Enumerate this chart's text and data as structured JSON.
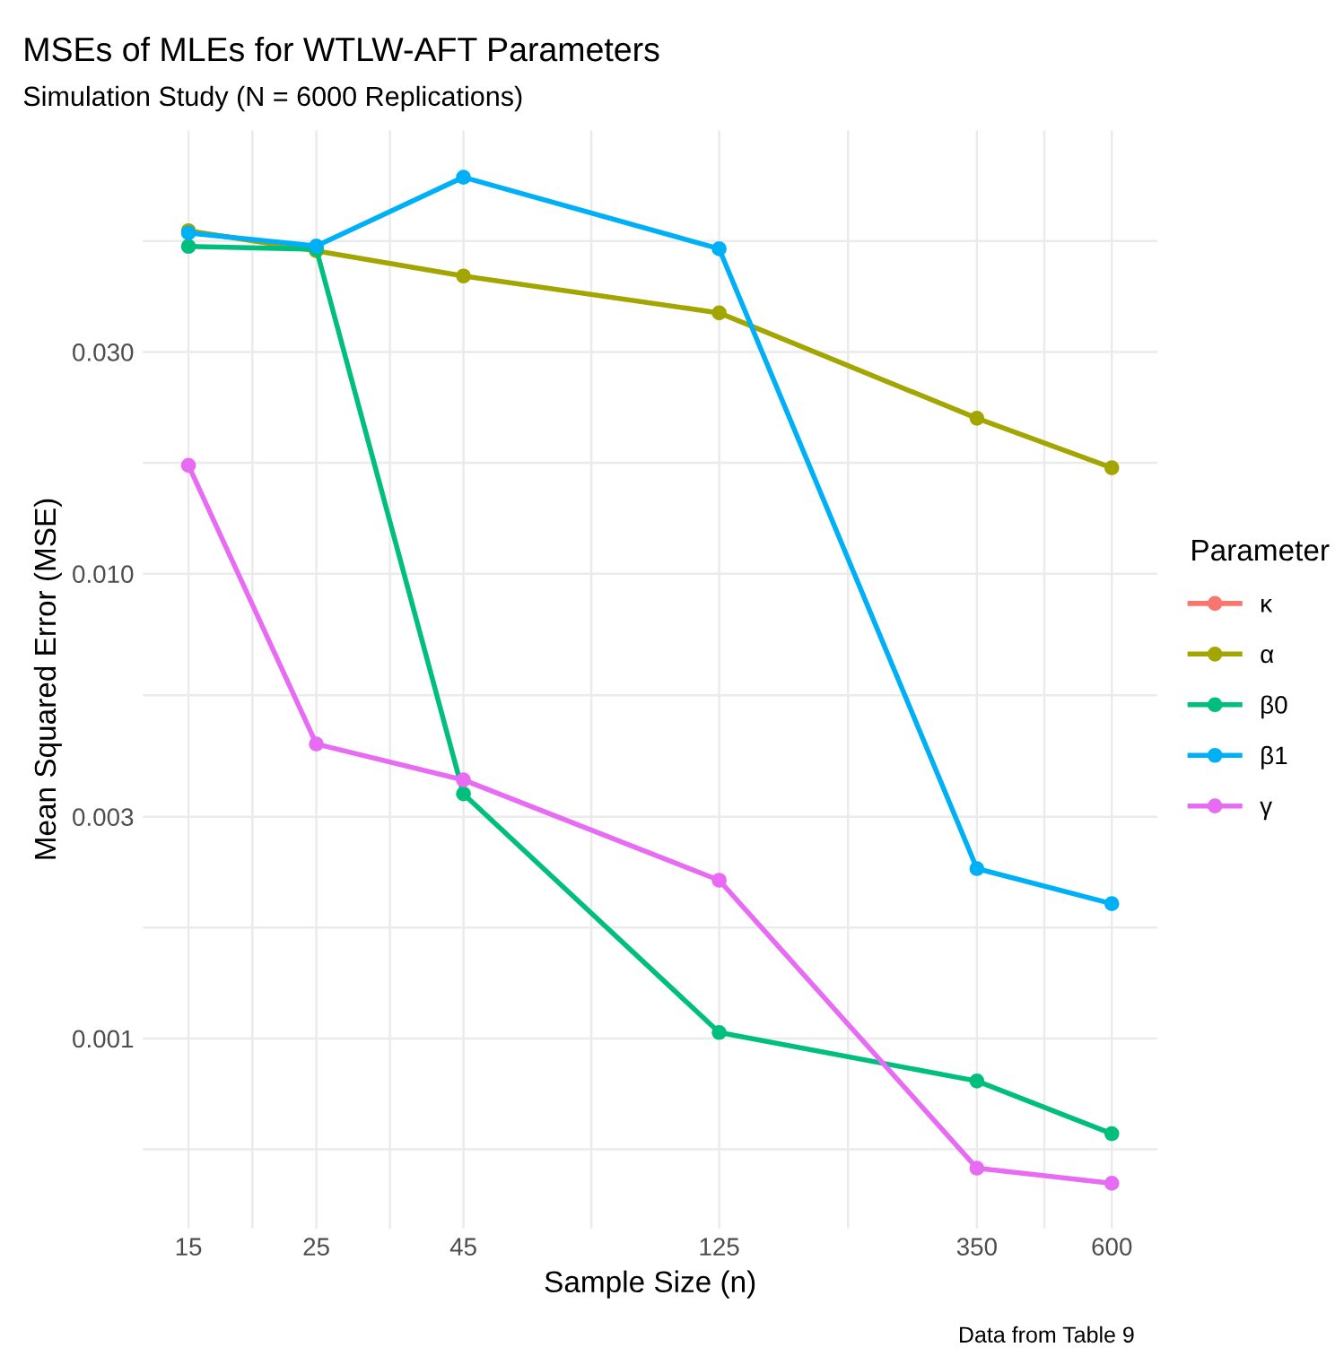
{
  "chart_data": {
    "type": "line",
    "title": "MSEs of MLEs for WTLW-AFT Parameters",
    "subtitle": "Simulation Study (N = 6000 Replications)",
    "xlabel": "Sample Size (n)",
    "ylabel": "Mean Squared Error (MSE)",
    "legend_title": "Parameter",
    "annotations": [
      "Data from Table 9"
    ],
    "x": [
      15,
      25,
      45,
      125,
      350,
      600
    ],
    "series": [
      {
        "name": "κ",
        "color": "#f8766d",
        "values": [
          null,
          null,
          null,
          null,
          null,
          null
        ]
      },
      {
        "name": "α",
        "color": "#a3a500",
        "values": [
          0.0547,
          0.0495,
          0.0437,
          0.0364,
          0.0216,
          0.0169
        ]
      },
      {
        "name": "β0",
        "color": "#00bf7d",
        "values": [
          0.0506,
          0.0499,
          0.00336,
          0.00103,
          0.00081,
          0.000624
        ]
      },
      {
        "name": "β1",
        "color": "#00b0f6",
        "values": [
          0.0541,
          0.0507,
          0.0713,
          0.05,
          0.00232,
          0.00195
        ]
      },
      {
        "name": "γ",
        "color": "#e76bf3",
        "values": [
          0.0171,
          0.0043,
          0.0036,
          0.00219,
          0.000526,
          0.000488
        ]
      }
    ],
    "log": "xy",
    "xlim": [
      12.5,
      720
    ],
    "xticks": [
      15,
      25,
      45,
      125,
      350,
      600
    ],
    "ylim": [
      0.00039,
      0.09
    ],
    "yticks": [
      {
        "value": 0.001,
        "label": "0.001"
      },
      {
        "value": 0.003,
        "label": "0.003"
      },
      {
        "value": 0.01,
        "label": "0.010"
      },
      {
        "value": 0.03,
        "label": "0.030"
      }
    ],
    "grid": true,
    "legend": "right",
    "marker": "circle",
    "line_style": "solid"
  }
}
